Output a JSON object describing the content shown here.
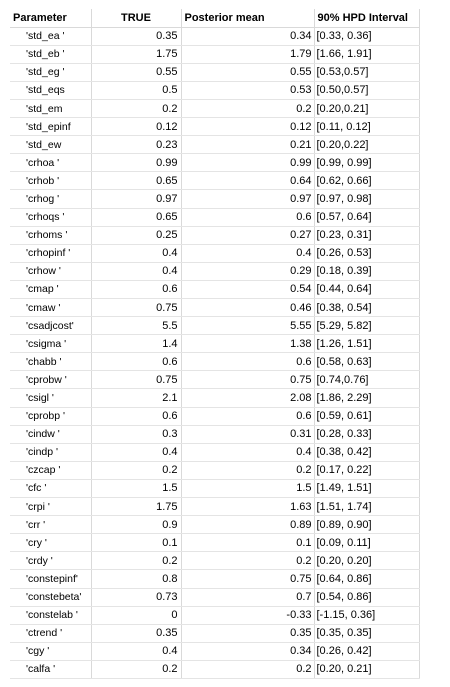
{
  "headers": {
    "parameter": "Parameter",
    "true": "TRUE",
    "posterior_mean": "Posterior mean",
    "hpd": "90% HPD Interval"
  },
  "rows": [
    {
      "param": "'std_ea      '",
      "true": "0.35",
      "mean": "0.34",
      "hpd": "[0.33, 0.36]"
    },
    {
      "param": "'std_eb      '",
      "true": "1.75",
      "mean": "1.79",
      "hpd": "[1.66, 1.91]"
    },
    {
      "param": "'std_eg      '",
      "true": "0.55",
      "mean": "0.55",
      "hpd": "[0.53,0.57]"
    },
    {
      "param": "'std_eqs",
      "true": "0.5",
      "mean": "0.53",
      "hpd": "[0.50,0.57]"
    },
    {
      "param": "'std_em",
      "true": "0.2",
      "mean": "0.2",
      "hpd": "[0.20,0.21]"
    },
    {
      "param": "'std_epinf",
      "true": "0.12",
      "mean": "0.12",
      "hpd": "[0.11, 0.12]"
    },
    {
      "param": "'std_ew",
      "true": "0.23",
      "mean": "0.21",
      "hpd": "[0.20,0.22]"
    },
    {
      "param": "'crhoa    '",
      "true": "0.99",
      "mean": "0.99",
      "hpd": "[0.99, 0.99]"
    },
    {
      "param": "'crhob    '",
      "true": "0.65",
      "mean": "0.64",
      "hpd": "[0.62, 0.66]"
    },
    {
      "param": "'crhog    '",
      "true": "0.97",
      "mean": "0.97",
      "hpd": "[0.97, 0.98]"
    },
    {
      "param": "'crhoqs   '",
      "true": "0.65",
      "mean": "0.6",
      "hpd": "[0.57, 0.64]"
    },
    {
      "param": "'crhoms   '",
      "true": "0.25",
      "mean": "0.27",
      "hpd": "[0.23, 0.31]"
    },
    {
      "param": "'crhopinf '",
      "true": "0.4",
      "mean": "0.4",
      "hpd": "[0.26, 0.53]"
    },
    {
      "param": "'crhow    '",
      "true": "0.4",
      "mean": "0.29",
      "hpd": "[0.18, 0.39]"
    },
    {
      "param": "'cmap     '",
      "true": "0.6",
      "mean": "0.54",
      "hpd": "[0.44, 0.64]"
    },
    {
      "param": "'cmaw     '",
      "true": "0.75",
      "mean": "0.46",
      "hpd": "[0.38, 0.54]"
    },
    {
      "param": "'csadjcost'",
      "true": "5.5",
      "mean": "5.55",
      "hpd": "[5.29, 5.82]"
    },
    {
      "param": "'csigma   '",
      "true": "1.4",
      "mean": "1.38",
      "hpd": "[1.26, 1.51]"
    },
    {
      "param": "'chabb    '",
      "true": "0.6",
      "mean": "0.6",
      "hpd": "[0.58, 0.63]"
    },
    {
      "param": "'cprobw   '",
      "true": "0.75",
      "mean": "0.75",
      "hpd": "[0.74,0.76]"
    },
    {
      "param": "'csigl    '",
      "true": "2.1",
      "mean": "2.08",
      "hpd": "[1.86, 2.29]"
    },
    {
      "param": "'cprobp   '",
      "true": "0.6",
      "mean": "0.6",
      "hpd": "[0.59, 0.61]"
    },
    {
      "param": "'cindw    '",
      "true": "0.3",
      "mean": "0.31",
      "hpd": "[0.28, 0.33]"
    },
    {
      "param": "'cindp    '",
      "true": "0.4",
      "mean": "0.4",
      "hpd": "[0.38, 0.42]"
    },
    {
      "param": "'czcap    '",
      "true": "0.2",
      "mean": "0.2",
      "hpd": "[0.17, 0.22]"
    },
    {
      "param": "'cfc      '",
      "true": "1.5",
      "mean": "1.5",
      "hpd": "[1.49, 1.51]"
    },
    {
      "param": "'crpi     '",
      "true": "1.75",
      "mean": "1.63",
      "hpd": "[1.51, 1.74]"
    },
    {
      "param": "'crr      '",
      "true": "0.9",
      "mean": "0.89",
      "hpd": "[0.89, 0.90]"
    },
    {
      "param": "'cry      '",
      "true": "0.1",
      "mean": "0.1",
      "hpd": "[0.09, 0.11]"
    },
    {
      "param": "'crdy     '",
      "true": "0.2",
      "mean": "0.2",
      "hpd": "[0.20, 0.20]"
    },
    {
      "param": "'constepinf'",
      "true": "0.8",
      "mean": "0.75",
      "hpd": "[0.64, 0.86]"
    },
    {
      "param": "'constebeta'",
      "true": "0.73",
      "mean": "0.7",
      "hpd": "[0.54, 0.86]"
    },
    {
      "param": "'constelab '",
      "true": "0",
      "mean": "-0.33",
      "hpd": "[-1.15, 0.36]"
    },
    {
      "param": "'ctrend   '",
      "true": "0.35",
      "mean": "0.35",
      "hpd": "[0.35, 0.35]"
    },
    {
      "param": "'cgy      '",
      "true": "0.4",
      "mean": "0.34",
      "hpd": "[0.26, 0.42]"
    },
    {
      "param": "'calfa    '",
      "true": "0.2",
      "mean": "0.2",
      "hpd": "[0.20, 0.21]"
    }
  ]
}
